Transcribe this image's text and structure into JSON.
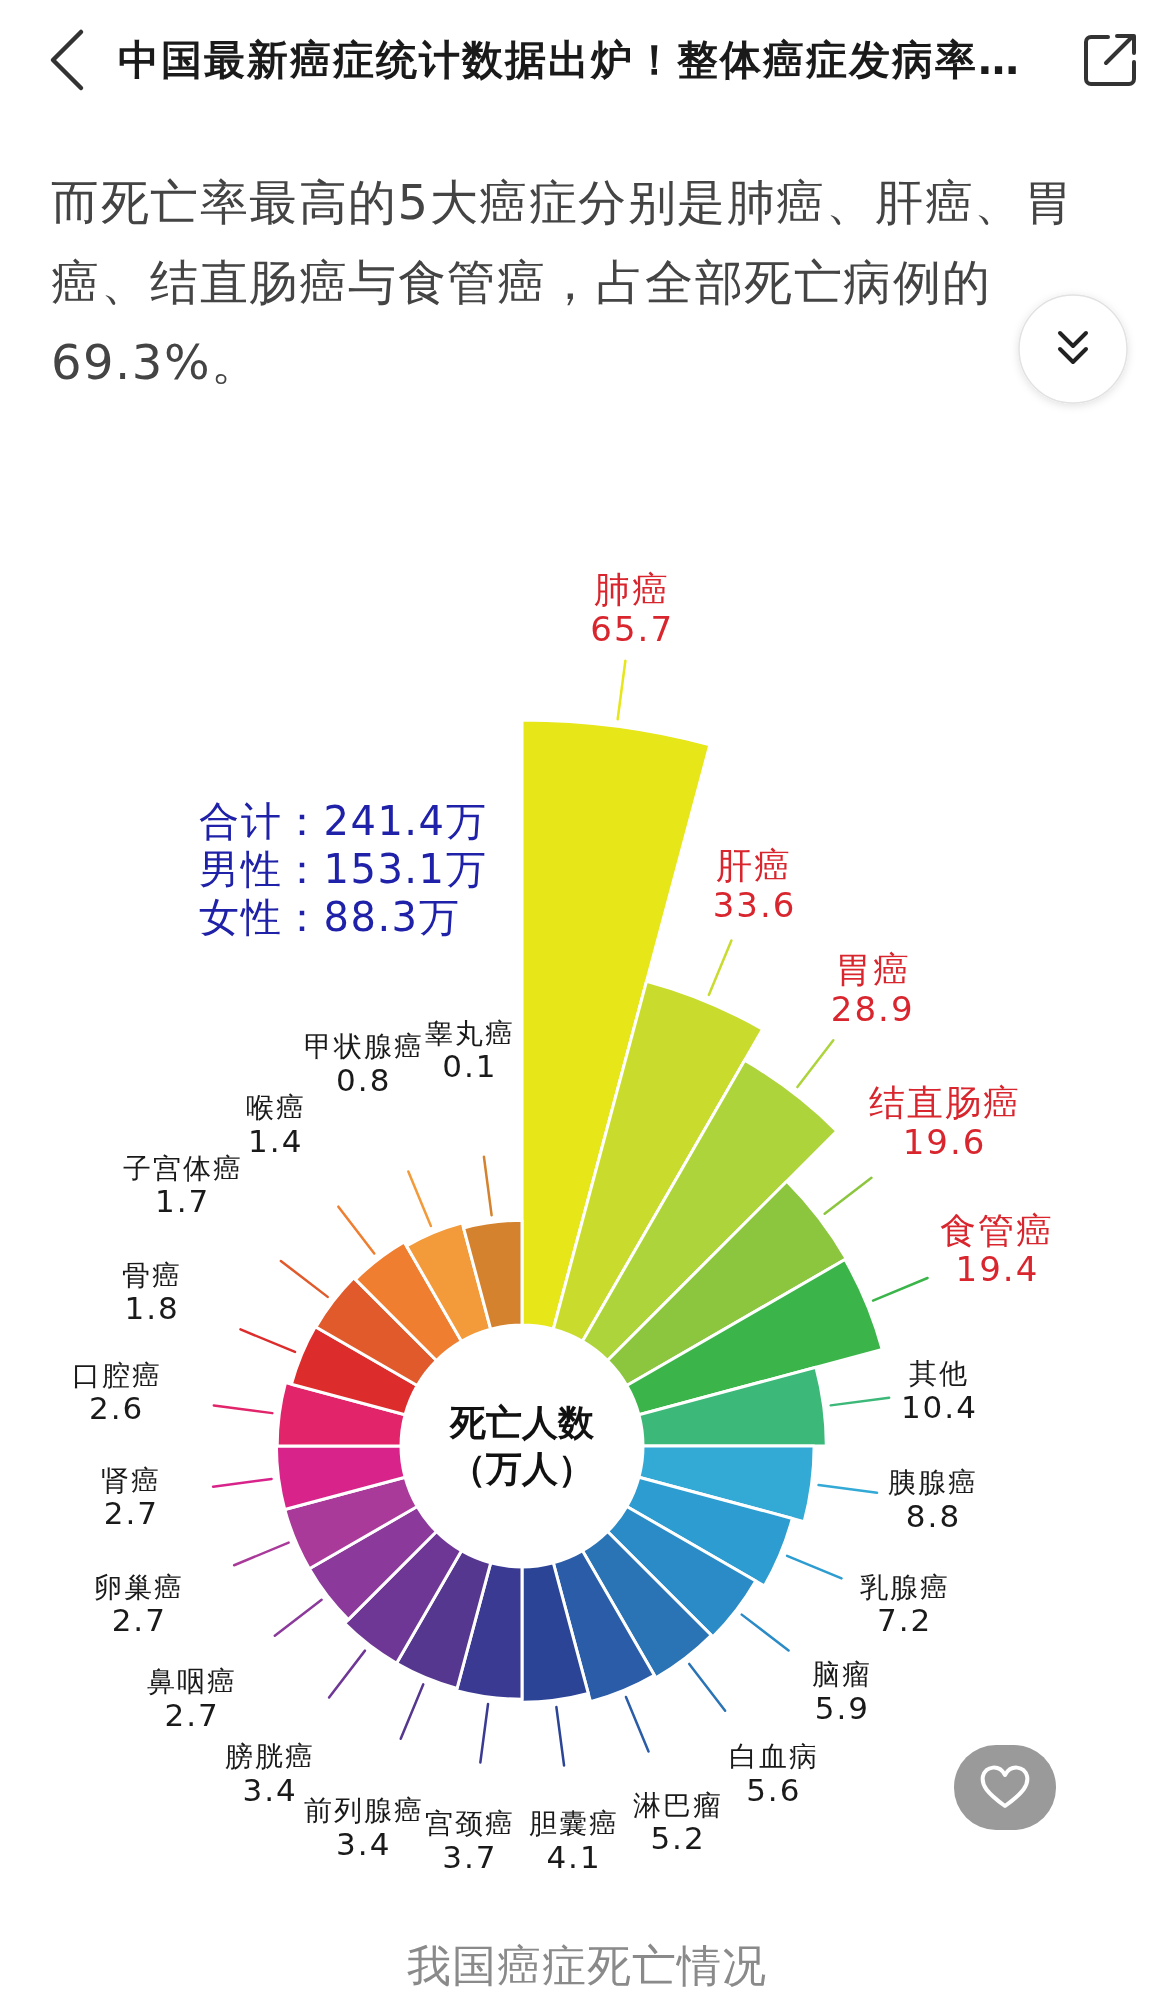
{
  "chart_data": {
    "type": "other",
    "title": "中国最新癌症统计数据出炉！整体癌症发病率…",
    "subtitle": "而死亡率最高的5大癌症分别是肺癌、肝癌、胃癌、结直肠癌与食管癌，占全部死亡病例的69.3%。",
    "ylabel": "死亡人数（万人）",
    "categories": [
      "肺癌",
      "肝癌",
      "胃癌",
      "结直肠癌",
      "食管癌",
      "其他",
      "胰腺癌",
      "乳腺癌",
      "脑瘤",
      "白血病",
      "淋巴瘤",
      "胆囊癌",
      "宫颈癌",
      "前列腺癌",
      "膀胱癌",
      "鼻咽癌",
      "卵巢癌",
      "肾癌",
      "口腔癌",
      "骨癌",
      "子宫体癌",
      "喉癌",
      "甲状腺癌",
      "睾丸癌"
    ],
    "values": [
      65.7,
      33.6,
      28.9,
      19.6,
      19.4,
      10.4,
      8.8,
      7.2,
      5.9,
      5.6,
      5.2,
      4.1,
      3.7,
      3.4,
      3.4,
      2.7,
      2.7,
      2.7,
      2.6,
      1.8,
      1.7,
      1.4,
      0.8,
      0.1
    ],
    "colors": [
      "#e6e619",
      "#c9dc2e",
      "#aed43c",
      "#8cc63f",
      "#3bb54a",
      "#3cb878",
      "#33a9d6",
      "#2d9cd0",
      "#2a8bc6",
      "#2a73b5",
      "#2a5ca8",
      "#2b4496",
      "#3b3a93",
      "#55378f",
      "#6e3795",
      "#8b3a9b",
      "#a93a9a",
      "#d8238a",
      "#e2256a",
      "#dd2c2c",
      "#e05a2c",
      "#ef7e30",
      "#f39a3a",
      "#d4822e"
    ],
    "data_labels": true,
    "annotations": [
      "合计：241.4万",
      "男性：153.1万",
      "女性：88.3万",
      "我国癌症死亡情况"
    ]
  }
}
